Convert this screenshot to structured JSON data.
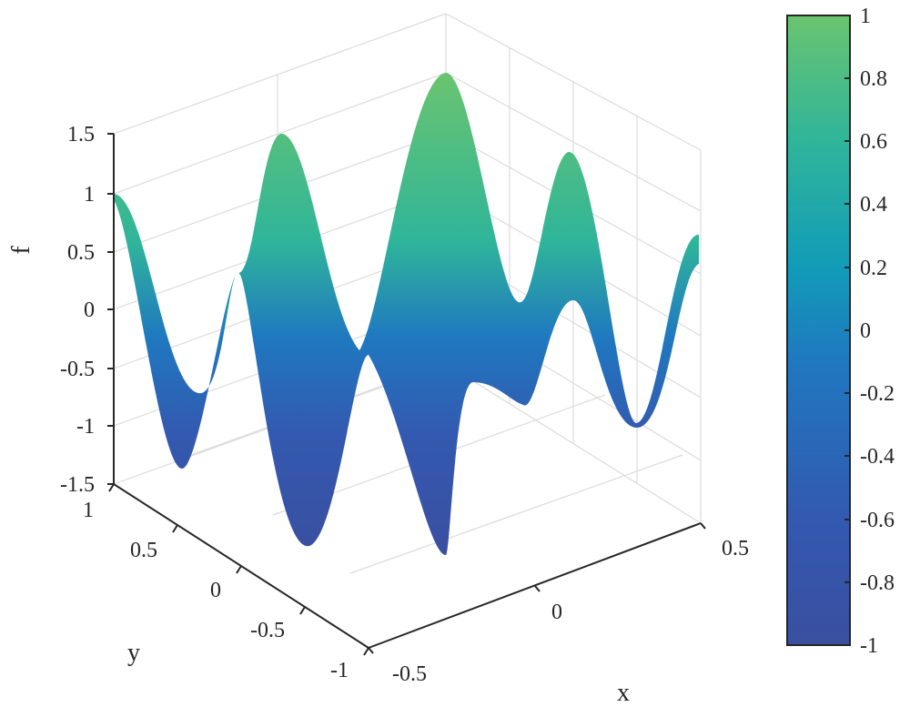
{
  "chart_data": {
    "type": "surface",
    "zlabel": "f",
    "xlabel": "x",
    "ylabel": "y",
    "xlim": [
      -0.5,
      0.5
    ],
    "ylim": [
      -1,
      1
    ],
    "zlim": [
      -1.5,
      1.5
    ],
    "x_ticks": [
      "-0.5",
      "0",
      "0.5"
    ],
    "y_ticks": [
      "-1",
      "-0.5",
      "0",
      "0.5",
      "1"
    ],
    "z_ticks": [
      "1.5",
      "1",
      "0.5",
      "0",
      "-0.5",
      "-1",
      "-1.5"
    ],
    "colorbar": {
      "ticks": [
        "1",
        "0.8",
        "0.6",
        "0.4",
        "0.2",
        "0",
        "-0.2",
        "-0.4",
        "-0.6",
        "-0.8",
        "-1"
      ],
      "range": [
        -1,
        1
      ],
      "colormap": [
        "#3a4fa0",
        "#3359b0",
        "#1f78c0",
        "#129cb8",
        "#2fb59a",
        "#6ac46f"
      ]
    },
    "front_edge_y1": {
      "x": [
        -0.5,
        -0.4,
        -0.3,
        -0.2,
        -0.1,
        0,
        0.1,
        0.2,
        0.3,
        0.4,
        0.5
      ],
      "f": [
        1.0,
        -0.8,
        1.0,
        -1.3,
        1.4,
        -1.5,
        1.3,
        -1.0,
        0.8,
        -1.0,
        0.6
      ]
    },
    "back_edge_ym1": {
      "x": [
        -0.5,
        -0.4,
        -0.3,
        -0.2,
        -0.1,
        0,
        0.1,
        0.2,
        0.3,
        0.4,
        0.5
      ],
      "f": [
        1.0,
        -0.8,
        1.0,
        -1.3,
        1.4,
        -1.5,
        1.3,
        -1.0,
        0.8,
        -1.0,
        0.6
      ]
    },
    "grid": true
  }
}
